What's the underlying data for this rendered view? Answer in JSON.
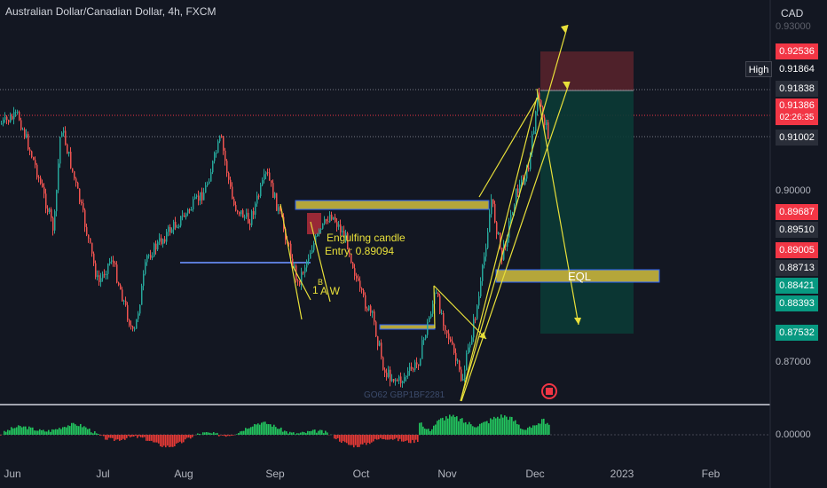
{
  "title": "Australian Dollar/Canadian Dollar, 4h, FXCM",
  "currency": "CAD",
  "partial_top_label": "0.93000",
  "high_tag": "High",
  "price_labels": [
    {
      "text": "0.92536",
      "color": "#f23645"
    },
    {
      "text": "0.91864",
      "color": "#131722"
    },
    {
      "text": "0.91838",
      "color": "#2a2e39"
    },
    {
      "text": "0.91386",
      "color": "#f23645"
    },
    {
      "text": "0.91002",
      "color": "#2a2e39"
    },
    {
      "text": "0.89687",
      "color": "#f23645"
    },
    {
      "text": "0.89510",
      "color": "#2a2e39"
    },
    {
      "text": "0.89005",
      "color": "#f23645"
    },
    {
      "text": "0.88713",
      "color": "#2a2e39"
    },
    {
      "text": "0.88421",
      "color": "#089981"
    },
    {
      "text": "0.88393",
      "color": "#089981"
    },
    {
      "text": "0.87532",
      "color": "#089981"
    }
  ],
  "countdown": "02:26:35",
  "axis_labels": [
    "0.90000",
    "0.87000",
    "0.00000"
  ],
  "x_labels": [
    "Jun",
    "Jul",
    "Aug",
    "Sep",
    "Oct",
    "Nov",
    "Dec",
    "2023",
    "Feb"
  ],
  "annotations": {
    "engulfing": "Engulfing candle",
    "entry": "Entry: 0.89094",
    "eql": "EQL",
    "one_b": "1",
    "b_mark": "B",
    "a_w": "A W",
    "faded": "GO62 GBP1BF2281"
  },
  "colors": {
    "up": "#26a69a",
    "down": "#ef5350",
    "background": "#131722",
    "annotation": "#e8e03a",
    "zone": "#b5a63a",
    "sl_zone": "#4a1f26",
    "tp_zone": "#0d3a35"
  }
}
